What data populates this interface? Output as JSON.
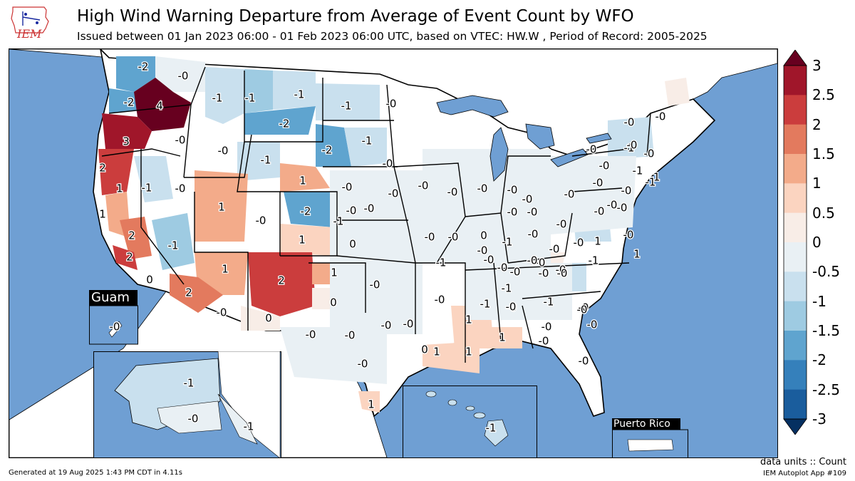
{
  "header": {
    "title": "High Wind Warning Departure from Average of Event Count by WFO",
    "subtitle": "Issued between 01 Jan 2023 06:00 - 01 Feb 2023 06:00 UTC, based on VTEC: HW.W  , Period of Record: 2005-2025",
    "logo_text": "IEM"
  },
  "footer": {
    "generated": "Generated at 19 Aug 2025 1:43 PM CDT in 4.11s",
    "units": "data units :: Count",
    "app": "IEM Autoplot App #109"
  },
  "colors": {
    "ocean": "#6f9fd3",
    "land_outside": "#ffffff",
    "border": "#000000"
  },
  "colorbar": {
    "ticks": [
      "3",
      "2.5",
      "2",
      "1.5",
      "1",
      "0.5",
      "0",
      "-0.5",
      "-1",
      "-1.5",
      "-2",
      "-2.5",
      "-3"
    ],
    "colors": [
      "#67001f",
      "#a0162a",
      "#cb3d3d",
      "#e37a5e",
      "#f3ab8a",
      "#fbd4c0",
      "#f8ede7",
      "#e9f0f4",
      "#c9e0ee",
      "#9ecbe2",
      "#5fa4cf",
      "#3580bb",
      "#1a5d9d",
      "#053061"
    ]
  },
  "insets": {
    "guam": "Guam",
    "puerto_rico": "Puerto Rico"
  },
  "map_labels": [
    {
      "t": "-2",
      "v": -2
    },
    {
      "t": "-0",
      "v": -0.1
    },
    {
      "t": "-2",
      "v": -2
    },
    {
      "t": "4",
      "v": 4
    },
    {
      "t": "-1",
      "v": -1
    },
    {
      "t": "-1",
      "v": -1
    },
    {
      "t": "-1",
      "v": -1
    },
    {
      "t": "-1",
      "v": -1
    },
    {
      "t": "-0",
      "v": -0.1
    },
    {
      "t": "3",
      "v": 3
    },
    {
      "t": "-0",
      "v": -0.1
    },
    {
      "t": "-2",
      "v": -2
    },
    {
      "t": "-2",
      "v": -2
    },
    {
      "t": "-1",
      "v": -1
    },
    {
      "t": "-0",
      "v": -0.1
    },
    {
      "t": "-1",
      "v": -1
    },
    {
      "t": "2",
      "v": 2
    },
    {
      "t": "1",
      "v": 1
    },
    {
      "t": "-1",
      "v": -1
    },
    {
      "t": "-0",
      "v": -0.1
    },
    {
      "t": "1",
      "v": 1
    },
    {
      "t": "1",
      "v": 1
    },
    {
      "t": "-0",
      "v": -0.1
    },
    {
      "t": "-0",
      "v": -0.1
    },
    {
      "t": "1",
      "v": 1
    },
    {
      "t": "2",
      "v": 2
    },
    {
      "t": "-2",
      "v": -2
    },
    {
      "t": "-0",
      "v": -0.1
    },
    {
      "t": "-1",
      "v": -1
    },
    {
      "t": "-1",
      "v": -1
    },
    {
      "t": "1",
      "v": 1
    },
    {
      "t": "0",
      "v": 0.1
    },
    {
      "t": "2",
      "v": 2
    },
    {
      "t": "1",
      "v": 1
    },
    {
      "t": "2",
      "v": 2
    },
    {
      "t": "0",
      "v": 0.1
    },
    {
      "t": "1",
      "v": 1
    },
    {
      "t": "0",
      "v": 0.1
    },
    {
      "t": "2",
      "v": 2
    },
    {
      "t": "-0",
      "v": -0.1
    },
    {
      "t": "0",
      "v": 0.1
    },
    {
      "t": "-0",
      "v": -0.1
    },
    {
      "t": "-0",
      "v": -0.1
    },
    {
      "t": "-0",
      "v": -0.1
    },
    {
      "t": "-0",
      "v": -0.1
    },
    {
      "t": "1",
      "v": 1
    },
    {
      "t": "-0",
      "v": -0.1
    },
    {
      "t": "0",
      "v": 0.1
    },
    {
      "t": "-0",
      "v": -0.1
    },
    {
      "t": "-0",
      "v": -0.1
    },
    {
      "t": "-0",
      "v": -0.1
    },
    {
      "t": "-0",
      "v": -0.1
    },
    {
      "t": "-0",
      "v": -0.1
    },
    {
      "t": "-0",
      "v": -0.1
    },
    {
      "t": "-0",
      "v": -0.1
    },
    {
      "t": "-0",
      "v": -0.1
    },
    {
      "t": "-0",
      "v": -0.1
    },
    {
      "t": "1",
      "v": 1
    },
    {
      "t": "1",
      "v": 1
    },
    {
      "t": "1",
      "v": 1
    },
    {
      "t": "1",
      "v": 1
    },
    {
      "t": "-0",
      "v": -0.1
    },
    {
      "t": "-0",
      "v": -0.1
    },
    {
      "t": "-0",
      "v": -0.1
    },
    {
      "t": "-0",
      "v": -0.1
    },
    {
      "t": "-0",
      "v": -0.1
    },
    {
      "t": "-0",
      "v": -0.1
    },
    {
      "t": "-0",
      "v": -0.1
    },
    {
      "t": "-0",
      "v": -0.1
    },
    {
      "t": "-0",
      "v": -0.1
    },
    {
      "t": "-0",
      "v": -0.1
    },
    {
      "t": "-0",
      "v": -0.1
    },
    {
      "t": "-0",
      "v": -0.1
    },
    {
      "t": "-0",
      "v": -0.1
    },
    {
      "t": "-0",
      "v": -0.1
    },
    {
      "t": "-0",
      "v": -0.1
    },
    {
      "t": "-0",
      "v": -0.1
    },
    {
      "t": "-0",
      "v": -0.1
    },
    {
      "t": "-0",
      "v": -0.1
    },
    {
      "t": "0",
      "v": 0.1
    },
    {
      "t": "-1",
      "v": -1
    },
    {
      "t": "-0",
      "v": -0.1
    },
    {
      "t": "-0",
      "v": -0.1
    },
    {
      "t": "-0",
      "v": -0.1
    },
    {
      "t": "-1",
      "v": -1
    },
    {
      "t": "-0",
      "v": -0.1
    },
    {
      "t": "-0",
      "v": -0.1
    },
    {
      "t": "-0",
      "v": -0.1
    },
    {
      "t": "-1",
      "v": -1
    },
    {
      "t": "-1",
      "v": -1
    },
    {
      "t": "-1",
      "v": -1
    },
    {
      "t": "-0",
      "v": -0.1
    },
    {
      "t": "-0",
      "v": -0.1
    },
    {
      "t": "-1",
      "v": -1
    },
    {
      "t": "-0",
      "v": -0.1
    },
    {
      "t": "-0",
      "v": -0.1
    },
    {
      "t": "-0",
      "v": -0.1
    },
    {
      "t": "-0",
      "v": -0.1
    },
    {
      "t": "-0",
      "v": -0.1
    },
    {
      "t": "-0",
      "v": -0.1
    },
    {
      "t": "-0",
      "v": -0.1
    },
    {
      "t": "-0",
      "v": -0.1
    },
    {
      "t": "-0",
      "v": -0.1
    },
    {
      "t": "-0",
      "v": -0.1
    },
    {
      "t": "-1",
      "v": -1
    },
    {
      "t": "-0",
      "v": -0.1
    },
    {
      "t": "-1",
      "v": -1
    },
    {
      "t": "-0",
      "v": -0.1
    },
    {
      "t": "-1",
      "v": -1
    },
    {
      "t": "-0",
      "v": -0.1
    },
    {
      "t": "-1",
      "v": -1
    },
    {
      "t": "1",
      "v": 1
    },
    {
      "t": "1",
      "v": 1
    }
  ]
}
